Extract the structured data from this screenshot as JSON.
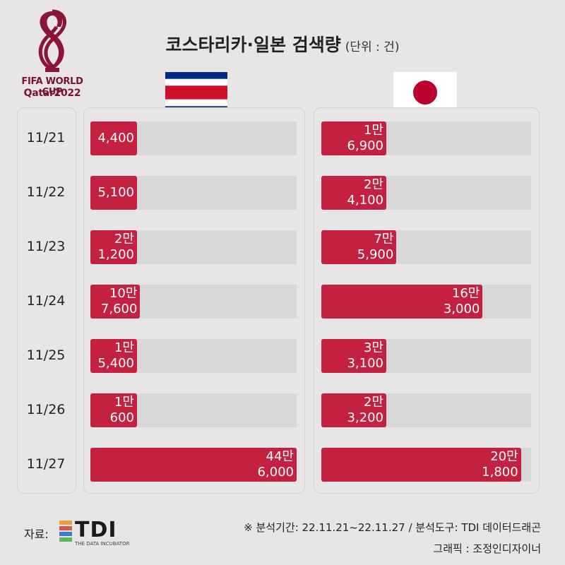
{
  "header": {
    "logo_line1": "FIFA WORLD CUP",
    "logo_line2": "Qatar2022",
    "title": "코스타리카·일본 검색량",
    "unit": "(단위 : 건)"
  },
  "colors": {
    "bar": "#c4203f",
    "track": "#d8d8d8",
    "background": "#e7e5e5"
  },
  "flags": [
    "costa-rica-flag",
    "japan-flag"
  ],
  "chart_data": {
    "type": "bar",
    "orientation": "horizontal",
    "title": "코스타리카·일본 검색량",
    "unit": "(단위 : 건)",
    "categories": [
      "11/21",
      "11/22",
      "11/23",
      "11/24",
      "11/25",
      "11/26",
      "11/27"
    ],
    "series": [
      {
        "name": "",
        "values": [
          4400,
          5100,
          21200,
          107600,
          15400,
          10600,
          446000
        ],
        "labels": [
          [
            "4,400"
          ],
          [
            "5,100"
          ],
          [
            "2만",
            "1,200"
          ],
          [
            "10만",
            "7,600"
          ],
          [
            "1만",
            "5,400"
          ],
          [
            "1만",
            "600"
          ],
          [
            "44만",
            "6,000"
          ]
        ]
      },
      {
        "name": "",
        "values": [
          16900,
          24100,
          75900,
          163000,
          33100,
          23200,
          201800
        ],
        "labels": [
          [
            "1만",
            "6,900"
          ],
          [
            "2만",
            "4,100"
          ],
          [
            "7만",
            "5,900"
          ],
          [
            "16만",
            "3,000"
          ],
          [
            "3만",
            "3,100"
          ],
          [
            "2만",
            "3,200"
          ],
          [
            "20만",
            "1,800"
          ]
        ]
      }
    ]
  },
  "footer": {
    "source_label": "자료:",
    "source_logo": "TDI",
    "source_logo_sub": "THE DATA INCUBATOR",
    "note": "※ 분석기간: 22.11.21~22.11.27 / 분석도구: TDI 데이터드래곤",
    "graphic": "그래픽 : 조정인디자이너"
  }
}
